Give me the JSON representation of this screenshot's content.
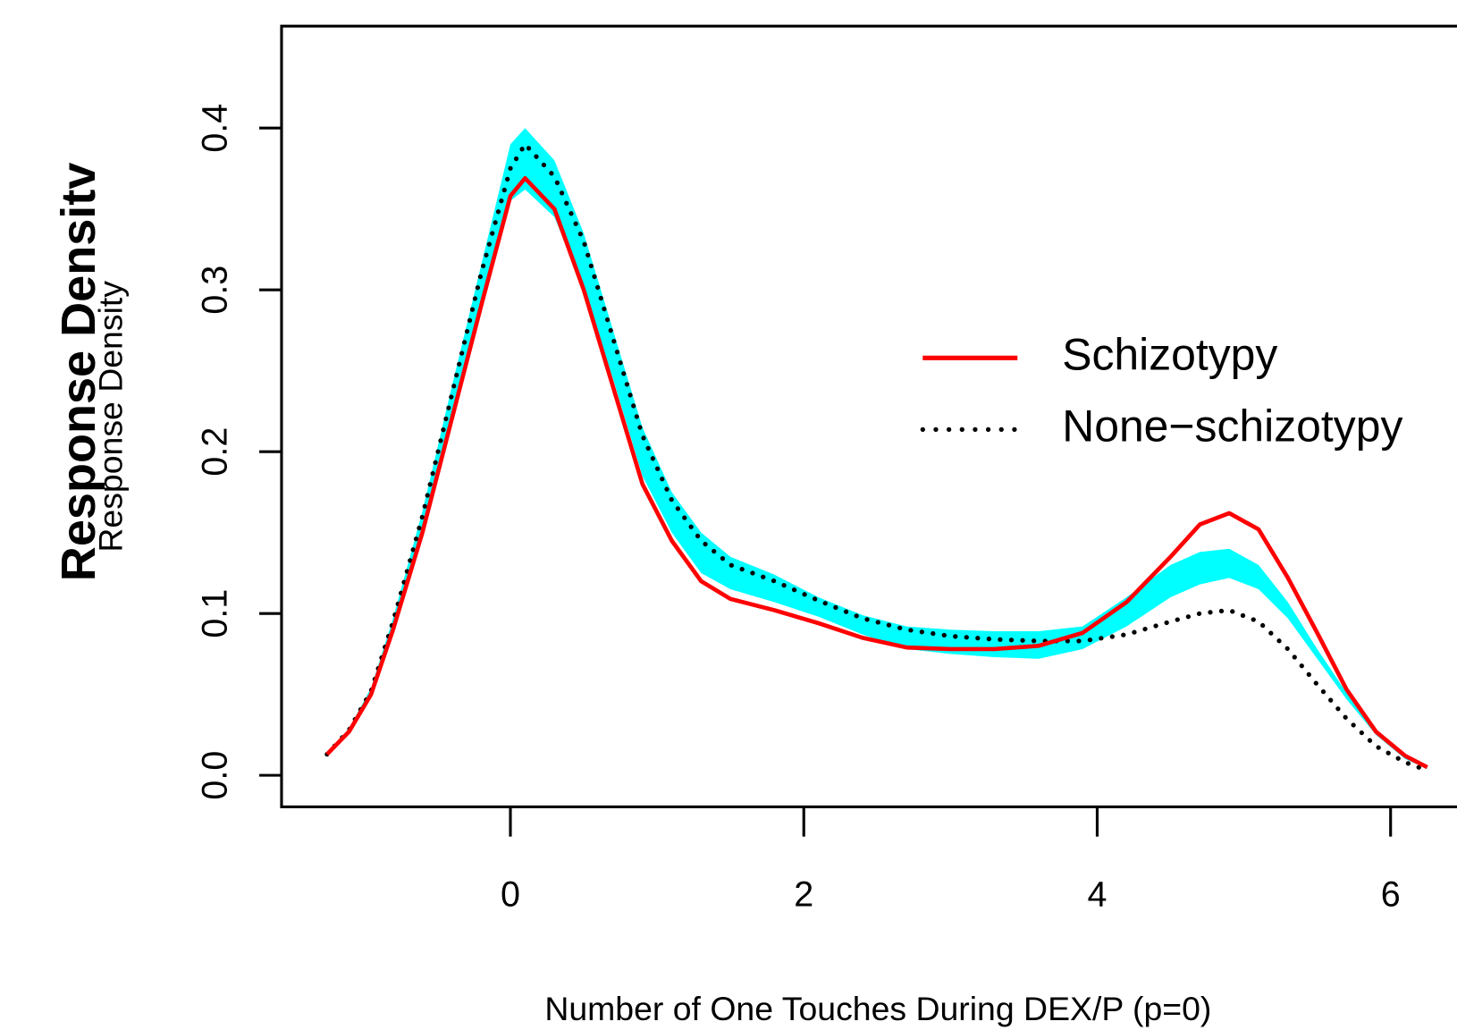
{
  "chart_data": {
    "type": "line",
    "title": "Response Densitv",
    "subtitle": "Response Density",
    "x_label": "Number of One Touches During DEX/P (p=0)",
    "x": [
      -1.25,
      -1.1,
      -0.95,
      -0.8,
      -0.6,
      -0.4,
      -0.2,
      0,
      0.1,
      0.3,
      0.5,
      0.7,
      0.9,
      1.1,
      1.3,
      1.5,
      1.8,
      2.1,
      2.4,
      2.7,
      3.0,
      3.3,
      3.6,
      3.9,
      4.2,
      4.5,
      4.7,
      4.9,
      5.1,
      5.3,
      5.5,
      5.7,
      5.9,
      6.1,
      6.25
    ],
    "band": {
      "color": "#00ffff",
      "lower": [
        0.013,
        0.027,
        0.05,
        0.09,
        0.15,
        0.22,
        0.29,
        0.355,
        0.362,
        0.345,
        0.3,
        0.245,
        0.185,
        0.15,
        0.125,
        0.115,
        0.107,
        0.098,
        0.087,
        0.078,
        0.075,
        0.073,
        0.072,
        0.078,
        0.092,
        0.11,
        0.118,
        0.122,
        0.115,
        0.097,
        0.072,
        0.047,
        0.025,
        0.01,
        0.004
      ],
      "upper": [
        0.014,
        0.029,
        0.054,
        0.097,
        0.163,
        0.24,
        0.315,
        0.39,
        0.4,
        0.38,
        0.335,
        0.275,
        0.215,
        0.175,
        0.15,
        0.135,
        0.124,
        0.11,
        0.099,
        0.092,
        0.09,
        0.089,
        0.089,
        0.092,
        0.11,
        0.13,
        0.138,
        0.14,
        0.13,
        0.107,
        0.078,
        0.051,
        0.028,
        0.012,
        0.005
      ]
    },
    "series": [
      {
        "name": "Schizotypy",
        "color": "#ff0000",
        "dash": "solid",
        "values": [
          0.013,
          0.027,
          0.05,
          0.09,
          0.15,
          0.22,
          0.29,
          0.358,
          0.369,
          0.35,
          0.3,
          0.24,
          0.18,
          0.145,
          0.12,
          0.109,
          0.102,
          0.094,
          0.085,
          0.079,
          0.078,
          0.078,
          0.08,
          0.088,
          0.107,
          0.135,
          0.155,
          0.162,
          0.152,
          0.122,
          0.088,
          0.053,
          0.027,
          0.012,
          0.005
        ]
      },
      {
        "name": "None−schizotypy",
        "color": "#000000",
        "dash": "dotted",
        "values": [
          0.013,
          0.028,
          0.052,
          0.095,
          0.16,
          0.235,
          0.31,
          0.375,
          0.39,
          0.37,
          0.33,
          0.27,
          0.21,
          0.17,
          0.145,
          0.13,
          0.12,
          0.108,
          0.097,
          0.09,
          0.086,
          0.084,
          0.083,
          0.083,
          0.087,
          0.095,
          0.1,
          0.102,
          0.095,
          0.078,
          0.056,
          0.035,
          0.018,
          0.008,
          0.003
        ]
      }
    ],
    "xlim": [
      -1.56,
      6.44
    ],
    "ylim": [
      -0.0195,
      0.463
    ],
    "xticks": [
      0,
      2,
      4,
      6
    ],
    "yticks": [
      {
        "value": 0,
        "label": "0.0"
      },
      0.1,
      0.2,
      0.3,
      0.4
    ],
    "legend": "right"
  }
}
